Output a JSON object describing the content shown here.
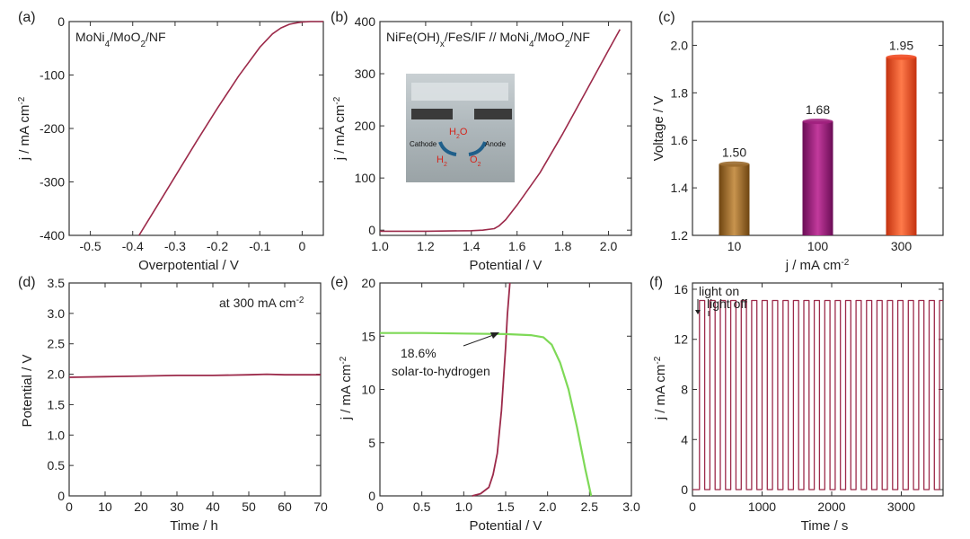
{
  "figure": {
    "panels": [
      "(a)",
      "(b)",
      "(c)",
      "(d)",
      "(e)",
      "(f)"
    ]
  },
  "colors": {
    "curve": "#9c2a4a",
    "pv": "#7ed957",
    "axis": "#333333",
    "bar_10": "#9a6a2e",
    "bar_100": "#a0207d",
    "bar_300": "#ef4b23"
  },
  "chart_data": [
    {
      "type": "line",
      "panel": "(a)",
      "annotation": "MoNi4/MoO2/NF",
      "xlabel": "Overpotential / V",
      "ylabel": "j / mA cm-2",
      "xlim": [
        -0.55,
        0.05
      ],
      "ylim": [
        -400,
        0
      ],
      "xticks": [
        -0.5,
        -0.4,
        -0.3,
        -0.2,
        -0.1,
        0.0
      ],
      "yticks": [
        -400,
        -300,
        -200,
        -100,
        0
      ],
      "x_tick_labels": [
        "-0.5",
        "-0.4",
        "-0.3",
        "-0.2",
        "-0.1",
        "0"
      ],
      "y_tick_labels": [
        "-400",
        "-300",
        "-200",
        "-100",
        "0"
      ],
      "series": [
        {
          "x": [
            -0.385,
            -0.35,
            -0.3,
            -0.25,
            -0.2,
            -0.15,
            -0.1,
            -0.07,
            -0.05,
            -0.03,
            -0.01,
            0.0,
            0.02,
            0.05
          ],
          "y": [
            -400,
            -355,
            -290,
            -225,
            -162,
            -102,
            -48,
            -23,
            -12,
            -5,
            -2,
            -1,
            0,
            0
          ]
        }
      ]
    },
    {
      "type": "line",
      "panel": "(b)",
      "annotation": "NiFe(OH)x/FeS/IF // MoNi4/MoO2/NF",
      "xlabel": "Potential / V",
      "ylabel": "j / mA cm-2",
      "xlim": [
        1.0,
        2.1
      ],
      "ylim": [
        -10,
        400
      ],
      "xticks": [
        1.0,
        1.2,
        1.4,
        1.6,
        1.8,
        2.0
      ],
      "yticks": [
        0,
        100,
        200,
        300,
        400
      ],
      "x_tick_labels": [
        "1.0",
        "1.2",
        "1.4",
        "1.6",
        "1.8",
        "2.0"
      ],
      "y_tick_labels": [
        "0",
        "100",
        "200",
        "300",
        "400"
      ],
      "inset_labels": {
        "h2o": "H2O",
        "cathode": "Cathode",
        "anode": "Anode",
        "h2": "H2",
        "o2": "O2"
      },
      "series": [
        {
          "x": [
            1.0,
            1.2,
            1.4,
            1.45,
            1.5,
            1.52,
            1.55,
            1.6,
            1.7,
            1.8,
            1.9,
            1.95,
            2.0,
            2.05
          ],
          "y": [
            -2,
            -2,
            -1,
            0,
            3,
            8,
            20,
            48,
            110,
            185,
            265,
            305,
            345,
            385
          ]
        }
      ]
    },
    {
      "type": "bar",
      "panel": "(c)",
      "xlabel": "j / mA cm-2",
      "ylabel": "Voltage / V",
      "categories": [
        "10",
        "100",
        "300"
      ],
      "values": [
        1.5,
        1.68,
        1.95
      ],
      "value_labels": [
        "1.50",
        "1.68",
        "1.95"
      ],
      "ylim": [
        1.2,
        2.1
      ],
      "yticks": [
        1.2,
        1.4,
        1.6,
        1.8,
        2.0
      ],
      "y_tick_labels": [
        "1.2",
        "1.4",
        "1.6",
        "1.8",
        "2.0"
      ]
    },
    {
      "type": "line",
      "panel": "(d)",
      "annotation": "at 300 mA cm-2",
      "xlabel": "Time / h",
      "ylabel": "Potential / V",
      "xlim": [
        0,
        70
      ],
      "ylim": [
        0,
        3.5
      ],
      "xticks": [
        0,
        10,
        20,
        30,
        40,
        50,
        60,
        70
      ],
      "yticks": [
        0,
        0.5,
        1.0,
        1.5,
        2.0,
        2.5,
        3.0,
        3.5
      ],
      "x_tick_labels": [
        "0",
        "10",
        "20",
        "30",
        "40",
        "50",
        "60",
        "70"
      ],
      "y_tick_labels": [
        "0",
        "0.5",
        "1.0",
        "1.5",
        "2.0",
        "2.5",
        "3.0",
        "3.5"
      ],
      "series": [
        {
          "x": [
            0,
            10,
            20,
            30,
            40,
            50,
            55,
            60,
            65,
            70
          ],
          "y": [
            1.95,
            1.96,
            1.97,
            1.98,
            1.98,
            1.99,
            2.0,
            1.99,
            1.99,
            1.99
          ]
        }
      ]
    },
    {
      "type": "line",
      "panel": "(e)",
      "xlabel": "Potential / V",
      "ylabel": "j / mA cm-2",
      "xlim": [
        0,
        3.0
      ],
      "ylim": [
        0,
        20
      ],
      "xticks": [
        0,
        0.5,
        1.0,
        1.5,
        2.0,
        2.5,
        3.0
      ],
      "yticks": [
        0,
        5,
        10,
        15,
        20
      ],
      "x_tick_labels": [
        "0",
        "0.5",
        "1.0",
        "1.5",
        "2.0",
        "2.5",
        "3.0"
      ],
      "y_tick_labels": [
        "0",
        "5",
        "10",
        "15",
        "20"
      ],
      "annotation_lines": [
        "18.6%",
        "solar-to-hydrogen"
      ],
      "series": [
        {
          "x": [
            1.1,
            1.2,
            1.3,
            1.35,
            1.4,
            1.45,
            1.5,
            1.52,
            1.55
          ],
          "y": [
            0,
            0.2,
            0.8,
            2,
            4,
            8,
            14,
            17,
            20
          ]
        },
        {
          "x": [
            0,
            0.5,
            1.0,
            1.5,
            1.8,
            1.95,
            2.05,
            2.15,
            2.25,
            2.35,
            2.45,
            2.52
          ],
          "y": [
            15.3,
            15.3,
            15.25,
            15.2,
            15.1,
            14.9,
            14.2,
            12.5,
            10.0,
            6.5,
            2.5,
            0
          ]
        }
      ]
    },
    {
      "type": "line",
      "panel": "(f)",
      "xlabel": "Time / s",
      "ylabel": "j / mA cm-2",
      "xlim": [
        0,
        3600
      ],
      "ylim": [
        -0.5,
        16.5
      ],
      "xticks": [
        0,
        1000,
        2000,
        3000
      ],
      "yticks": [
        0,
        4,
        8,
        12,
        16
      ],
      "x_tick_labels": [
        "0",
        "1000",
        "2000",
        "3000"
      ],
      "y_tick_labels": [
        "0",
        "4",
        "8",
        "12",
        "16"
      ],
      "annotation_on": "light on",
      "annotation_off": "light off",
      "cycle_s": 150,
      "on_level": 15.1,
      "off_level": 0,
      "first_on_s": 100
    }
  ]
}
